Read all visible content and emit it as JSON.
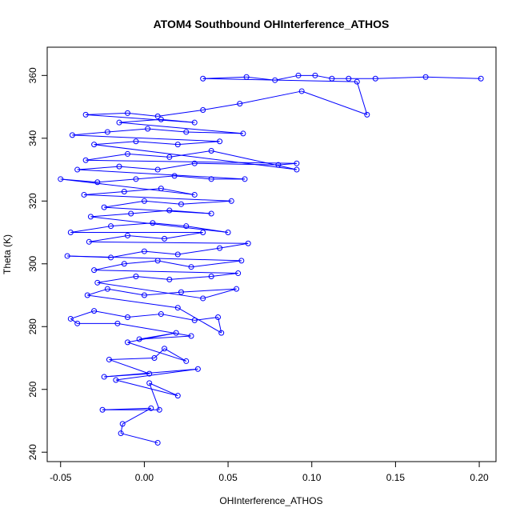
{
  "chart_data": {
    "type": "scatter",
    "title": "ATOM4 Southbound OHInterference_ATHOS",
    "xlabel": "OHInterference_ATHOS",
    "ylabel": "Theta (K)",
    "xlim": [
      -0.058,
      0.21
    ],
    "ylim": [
      237,
      369
    ],
    "x_ticks": [
      -0.05,
      0.0,
      0.05,
      0.1,
      0.15,
      0.2
    ],
    "x_tick_labels": [
      "-0.05",
      "0.00",
      "0.05",
      "0.10",
      "0.15",
      "0.20"
    ],
    "y_ticks": [
      240,
      260,
      280,
      300,
      320,
      340,
      360
    ],
    "y_tick_labels": [
      "240",
      "260",
      "280",
      "300",
      "320",
      "340",
      "360"
    ],
    "grid": false,
    "legend": "none",
    "marker": "open-circle",
    "connected_lines": true,
    "color": "#0000ff",
    "series": [
      {
        "values": [
          [
            0.008,
            243
          ],
          [
            -0.014,
            246
          ],
          [
            -0.013,
            249
          ],
          [
            0.004,
            254
          ],
          [
            -0.025,
            253.5
          ],
          [
            0.009,
            253.5
          ],
          [
            0.003,
            262
          ],
          [
            0.02,
            258
          ],
          [
            -0.017,
            263
          ],
          [
            0.032,
            266.5
          ],
          [
            -0.024,
            264
          ],
          [
            0.003,
            265
          ],
          [
            -0.021,
            269.5
          ],
          [
            0.006,
            270
          ],
          [
            0.012,
            273
          ],
          [
            0.025,
            269
          ],
          [
            -0.01,
            275
          ],
          [
            0.019,
            278
          ],
          [
            -0.003,
            276
          ],
          [
            0.028,
            277
          ],
          [
            -0.016,
            281
          ],
          [
            -0.04,
            281
          ],
          [
            -0.044,
            282.5
          ],
          [
            -0.03,
            285
          ],
          [
            -0.01,
            283
          ],
          [
            0.01,
            284
          ],
          [
            0.03,
            282
          ],
          [
            0.044,
            283
          ],
          [
            0.046,
            278
          ],
          [
            0.02,
            286
          ],
          [
            -0.034,
            290
          ],
          [
            -0.022,
            292
          ],
          [
            0.0,
            290
          ],
          [
            0.022,
            291
          ],
          [
            0.055,
            292
          ],
          [
            0.035,
            289
          ],
          [
            -0.028,
            294
          ],
          [
            -0.005,
            296
          ],
          [
            0.015,
            295
          ],
          [
            0.04,
            296
          ],
          [
            0.056,
            297
          ],
          [
            -0.03,
            298
          ],
          [
            -0.012,
            300
          ],
          [
            0.008,
            301
          ],
          [
            0.028,
            299
          ],
          [
            0.058,
            301
          ],
          [
            -0.046,
            302.5
          ],
          [
            -0.02,
            302
          ],
          [
            0.0,
            304
          ],
          [
            0.02,
            303
          ],
          [
            0.045,
            305
          ],
          [
            0.062,
            306.5
          ],
          [
            -0.033,
            307
          ],
          [
            -0.01,
            309
          ],
          [
            0.012,
            308
          ],
          [
            0.035,
            310
          ],
          [
            -0.044,
            310
          ],
          [
            -0.02,
            312
          ],
          [
            0.005,
            313
          ],
          [
            0.025,
            312
          ],
          [
            0.05,
            310
          ],
          [
            -0.032,
            315
          ],
          [
            -0.008,
            316
          ],
          [
            0.015,
            317
          ],
          [
            0.04,
            316
          ],
          [
            -0.024,
            318
          ],
          [
            0.0,
            320
          ],
          [
            0.022,
            319
          ],
          [
            0.052,
            320
          ],
          [
            -0.036,
            322
          ],
          [
            -0.012,
            323
          ],
          [
            0.01,
            324
          ],
          [
            0.03,
            322
          ],
          [
            -0.05,
            327
          ],
          [
            -0.028,
            326
          ],
          [
            -0.005,
            327
          ],
          [
            0.018,
            328
          ],
          [
            0.04,
            327
          ],
          [
            0.06,
            327
          ],
          [
            -0.04,
            330
          ],
          [
            -0.015,
            331
          ],
          [
            0.008,
            330
          ],
          [
            0.03,
            332
          ],
          [
            0.08,
            331.5
          ],
          [
            0.091,
            332
          ],
          [
            -0.035,
            333
          ],
          [
            -0.01,
            335
          ],
          [
            0.015,
            334
          ],
          [
            0.04,
            336
          ],
          [
            0.091,
            330
          ],
          [
            -0.03,
            338
          ],
          [
            -0.005,
            339
          ],
          [
            0.02,
            338
          ],
          [
            0.045,
            339
          ],
          [
            -0.043,
            341
          ],
          [
            -0.022,
            342
          ],
          [
            0.002,
            343
          ],
          [
            0.025,
            342
          ],
          [
            0.059,
            341.5
          ],
          [
            -0.015,
            345
          ],
          [
            0.01,
            346
          ],
          [
            0.03,
            345
          ],
          [
            -0.035,
            347.5
          ],
          [
            -0.01,
            348
          ],
          [
            0.008,
            347
          ],
          [
            0.035,
            349
          ],
          [
            0.057,
            351
          ],
          [
            0.094,
            355
          ],
          [
            0.133,
            347.5
          ],
          [
            0.127,
            358
          ],
          [
            0.035,
            359
          ],
          [
            0.061,
            359.5
          ],
          [
            0.078,
            358.5
          ],
          [
            0.092,
            360
          ],
          [
            0.102,
            360
          ],
          [
            0.112,
            359
          ],
          [
            0.122,
            359
          ],
          [
            0.138,
            359
          ],
          [
            0.168,
            359.5
          ],
          [
            0.201,
            359
          ]
        ]
      }
    ]
  }
}
